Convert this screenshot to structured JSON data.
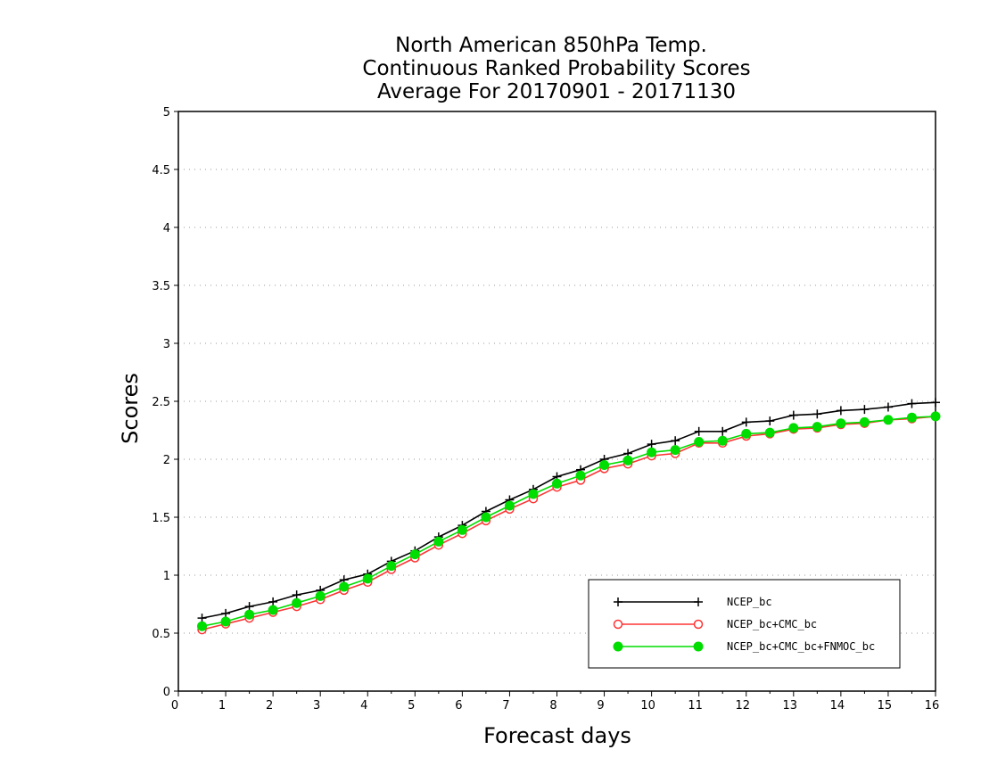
{
  "chart_data": {
    "type": "line",
    "title_lines": [
      "North American 850hPa Temp.",
      "Continuous Ranked Probability Scores",
      "Average For 20170901 - 20171130"
    ],
    "xlabel": "Forecast days",
    "ylabel": "Scores",
    "xlim": [
      0,
      16
    ],
    "ylim": [
      0,
      5
    ],
    "x_ticks": [
      "0",
      "1",
      "2",
      "3",
      "4",
      "5",
      "6",
      "7",
      "8",
      "9",
      "10",
      "11",
      "12",
      "13",
      "14",
      "15",
      "16"
    ],
    "y_ticks": [
      "0",
      "0.5",
      "1",
      "1.5",
      "2",
      "2.5",
      "3",
      "3.5",
      "4",
      "4.5",
      "5"
    ],
    "grid": "horizontal dotted",
    "legend_position": "bottom-right",
    "x": [
      0.5,
      1,
      1.5,
      2,
      2.5,
      3,
      3.5,
      4,
      4.5,
      5,
      5.5,
      6,
      6.5,
      7,
      7.5,
      8,
      8.5,
      9,
      9.5,
      10,
      10.5,
      11,
      11.5,
      12,
      12.5,
      13,
      13.5,
      14,
      14.5,
      15,
      15.5,
      16
    ],
    "series": [
      {
        "name": "NCEP_bc",
        "color": "#000000",
        "marker": "plus",
        "values": [
          0.63,
          0.67,
          0.73,
          0.77,
          0.83,
          0.87,
          0.96,
          1.01,
          1.12,
          1.21,
          1.33,
          1.43,
          1.55,
          1.65,
          1.74,
          1.85,
          1.91,
          2.0,
          2.05,
          2.13,
          2.16,
          2.24,
          2.24,
          2.32,
          2.33,
          2.38,
          2.39,
          2.42,
          2.43,
          2.45,
          2.48,
          2.49
        ]
      },
      {
        "name": "NCEP_bc+CMC_bc",
        "color": "#ff3333",
        "marker": "open-circle",
        "values": [
          0.53,
          0.58,
          0.63,
          0.68,
          0.73,
          0.79,
          0.87,
          0.94,
          1.05,
          1.15,
          1.26,
          1.36,
          1.47,
          1.57,
          1.66,
          1.76,
          1.82,
          1.92,
          1.96,
          2.03,
          2.05,
          2.14,
          2.14,
          2.2,
          2.22,
          2.26,
          2.27,
          2.3,
          2.31,
          2.34,
          2.35,
          2.37
        ]
      },
      {
        "name": "NCEP_bc+CMC_bc+FNMOC_bc",
        "color": "#00dd00",
        "marker": "filled-circle",
        "values": [
          0.56,
          0.6,
          0.66,
          0.7,
          0.76,
          0.82,
          0.9,
          0.97,
          1.08,
          1.18,
          1.29,
          1.39,
          1.5,
          1.6,
          1.7,
          1.79,
          1.86,
          1.95,
          1.99,
          2.06,
          2.08,
          2.15,
          2.16,
          2.22,
          2.23,
          2.27,
          2.28,
          2.31,
          2.32,
          2.34,
          2.36,
          2.37
        ]
      }
    ]
  }
}
